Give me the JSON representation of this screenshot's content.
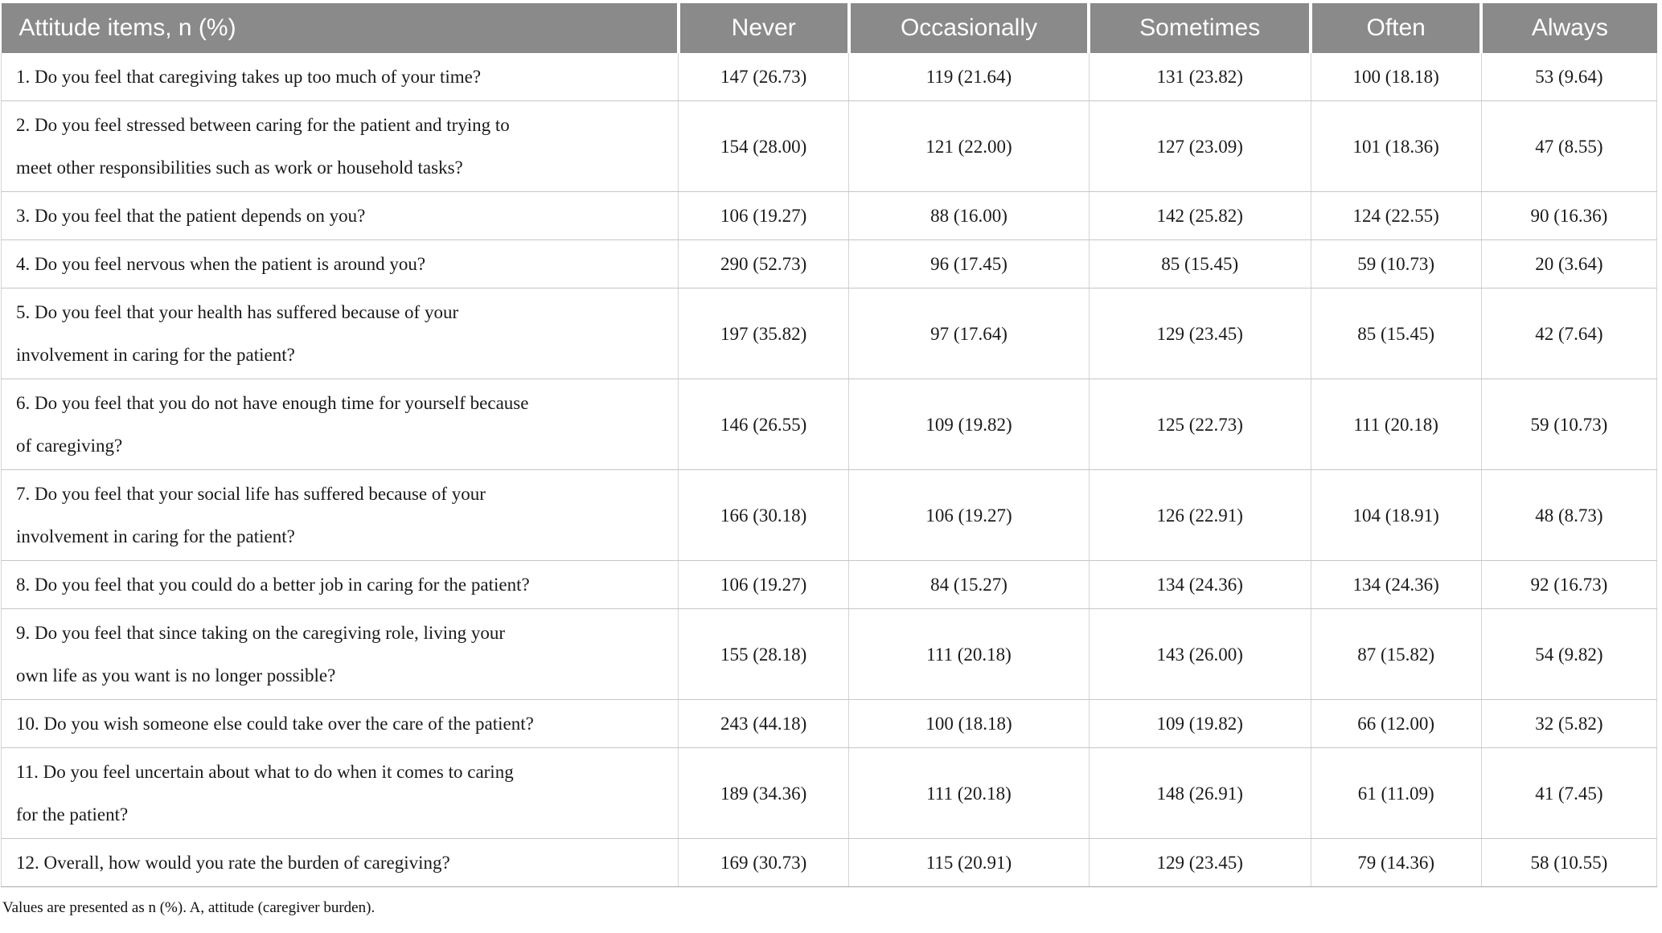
{
  "table": {
    "header": {
      "item_column_label": "Attitude items, n (%)",
      "response_columns": [
        "Never",
        "Occasionally",
        "Sometimes",
        "Often",
        "Always"
      ]
    },
    "rows": [
      {
        "item": "1. Do you feel that caregiving takes up too much of your time?",
        "values": [
          "147 (26.73)",
          "119 (21.64)",
          "131 (23.82)",
          "100 (18.18)",
          "53 (9.64)"
        ]
      },
      {
        "item": "2. Do you feel stressed between caring for the patient and trying to\nmeet other responsibilities such as work or household tasks?",
        "values": [
          "154 (28.00)",
          "121 (22.00)",
          "127 (23.09)",
          "101 (18.36)",
          "47 (8.55)"
        ]
      },
      {
        "item": "3. Do you feel that the patient depends on you?",
        "values": [
          "106 (19.27)",
          "88 (16.00)",
          "142 (25.82)",
          "124 (22.55)",
          "90 (16.36)"
        ]
      },
      {
        "item": "4. Do you feel nervous when the patient is around you?",
        "values": [
          "290 (52.73)",
          "96 (17.45)",
          "85 (15.45)",
          "59 (10.73)",
          "20 (3.64)"
        ]
      },
      {
        "item": "5. Do you feel that your health has suffered because of your\ninvolvement in caring for the patient?",
        "values": [
          "197 (35.82)",
          "97 (17.64)",
          "129 (23.45)",
          "85 (15.45)",
          "42 (7.64)"
        ]
      },
      {
        "item": "6. Do you feel that you do not have enough time for yourself because\nof caregiving?",
        "values": [
          "146 (26.55)",
          "109 (19.82)",
          "125 (22.73)",
          "111 (20.18)",
          "59 (10.73)"
        ]
      },
      {
        "item": "7. Do you feel that your social life has suffered because of your\ninvolvement in caring for the patient?",
        "values": [
          "166 (30.18)",
          "106 (19.27)",
          "126 (22.91)",
          "104 (18.91)",
          "48 (8.73)"
        ]
      },
      {
        "item": "8. Do you feel that you could do a better job in caring for the patient?",
        "values": [
          "106 (19.27)",
          "84 (15.27)",
          "134 (24.36)",
          "134 (24.36)",
          "92 (16.73)"
        ]
      },
      {
        "item": "9. Do you feel that since taking on the caregiving role, living your\nown life as you want is no longer possible?",
        "values": [
          "155 (28.18)",
          "111 (20.18)",
          "143 (26.00)",
          "87 (15.82)",
          "54 (9.82)"
        ]
      },
      {
        "item": "10. Do you wish someone else could take over the care of the patient?",
        "values": [
          "243 (44.18)",
          "100 (18.18)",
          "109 (19.82)",
          "66 (12.00)",
          "32 (5.82)"
        ]
      },
      {
        "item": "11. Do you feel uncertain about what to do when it comes to caring\nfor the patient?",
        "values": [
          "189 (34.36)",
          "111 (20.18)",
          "148 (26.91)",
          "61 (11.09)",
          "41 (7.45)"
        ]
      },
      {
        "item": "12. Overall, how would you rate the burden of caregiving?",
        "values": [
          "169 (30.73)",
          "115 (20.91)",
          "129 (23.45)",
          "79 (14.36)",
          "58 (10.55)"
        ]
      }
    ],
    "footnote": "Values are presented as n (%). A, attitude (caregiver burden)."
  },
  "colors": {
    "header_background": "#8a8a8a",
    "header_text": "#ffffff",
    "grid_line": "#c6c6c6",
    "body_text": "#1a1a1a"
  }
}
